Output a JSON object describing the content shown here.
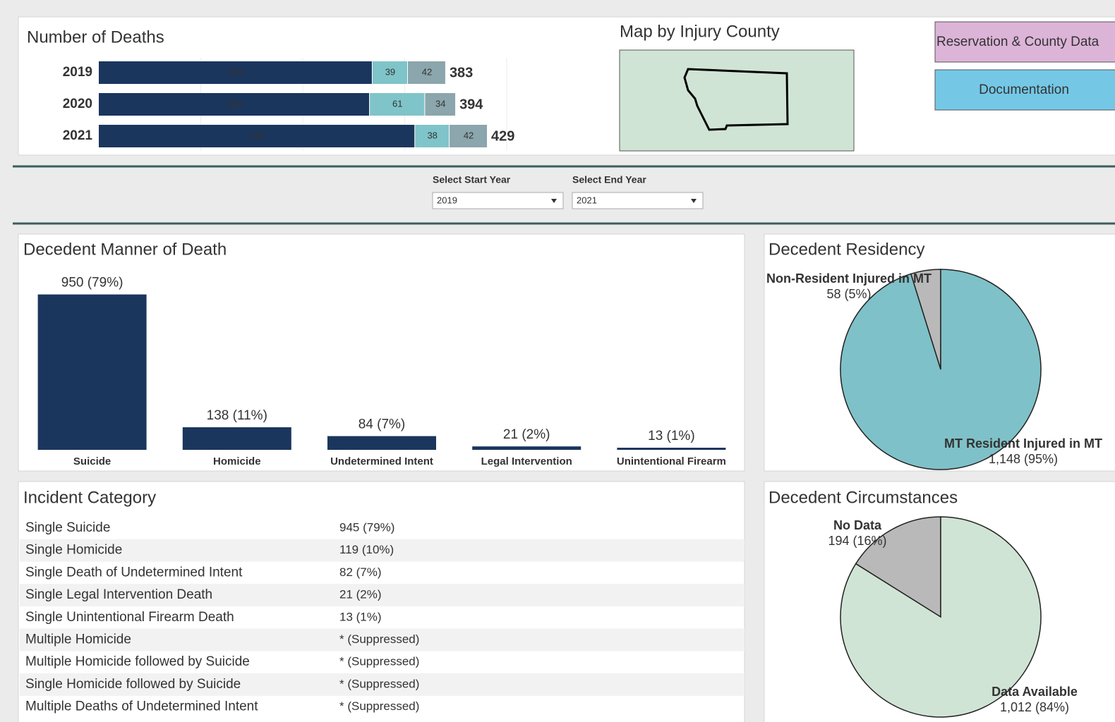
{
  "deaths": {
    "type": "bar",
    "title": "Number of Deaths",
    "categories": [
      "2019",
      "2020",
      "2021"
    ],
    "series": [
      {
        "values": [
          302,
          299,
          349
        ],
        "color": "#1b365d"
      },
      {
        "values": [
          39,
          61,
          38
        ],
        "color": "#7fc4c9"
      },
      {
        "values": [
          42,
          34,
          42
        ],
        "color": "#8ba6ac"
      }
    ],
    "totals": [
      383,
      394,
      429
    ],
    "xlim": [
      0,
      450
    ]
  },
  "map": {
    "title": "Map by Injury County"
  },
  "buttons": [
    "Reservation & County Data",
    "Documentation"
  ],
  "filters": [
    {
      "label": "Select Start Year",
      "value": "2019"
    },
    {
      "label": "Select End Year",
      "value": "2021"
    }
  ],
  "manner": {
    "type": "bar",
    "title": "Decedent Manner of Death",
    "categories": [
      "Suicide",
      "Homicide",
      "Undetermined Intent",
      "Legal Intervention",
      "Unintentional Firearm"
    ],
    "values": [
      950,
      138,
      84,
      21,
      13
    ],
    "value_labels": [
      "950 (79%)",
      "138 (11%)",
      "84 (7%)",
      "21 (2%)",
      "13 (1%)"
    ],
    "color": "#1b365d",
    "ylim": [
      0,
      1000
    ]
  },
  "incident": {
    "title": "Incident Category",
    "rows": [
      [
        "Single Suicide",
        "945 (79%)"
      ],
      [
        "Single Homicide",
        "119 (10%)"
      ],
      [
        "Single Death of Undetermined Intent",
        "82 (7%)"
      ],
      [
        "Single Legal Intervention Death",
        "21 (2%)"
      ],
      [
        "Single Unintentional Firearm Death",
        "13 (1%)"
      ],
      [
        "Multiple Homicide",
        "* (Suppressed)"
      ],
      [
        "Multiple Homicide followed by Suicide",
        "* (Suppressed)"
      ],
      [
        "Single Homicide followed by Suicide",
        "* (Suppressed)"
      ],
      [
        "Multiple Deaths of Undetermined Intent",
        "* (Suppressed)"
      ]
    ]
  },
  "residency": {
    "type": "pie",
    "title": "Decedent Residency",
    "categories": [
      "Non-Resident Injured in MT",
      "MT Resident Injured in MT"
    ],
    "values": [
      58,
      1148
    ],
    "value_labels": [
      "58 (5%)",
      "1,148 (95%)"
    ],
    "colors": [
      "#b9b9b9",
      "#7fc1c8"
    ]
  },
  "circumstances": {
    "type": "pie",
    "title": "Decedent Circumstances",
    "categories": [
      "No Data",
      "Data Available"
    ],
    "values": [
      194,
      1012
    ],
    "value_labels": [
      "194 (16%)",
      "1,012 (84%)"
    ],
    "colors": [
      "#b9b9b9",
      "#d0e4d5"
    ]
  }
}
